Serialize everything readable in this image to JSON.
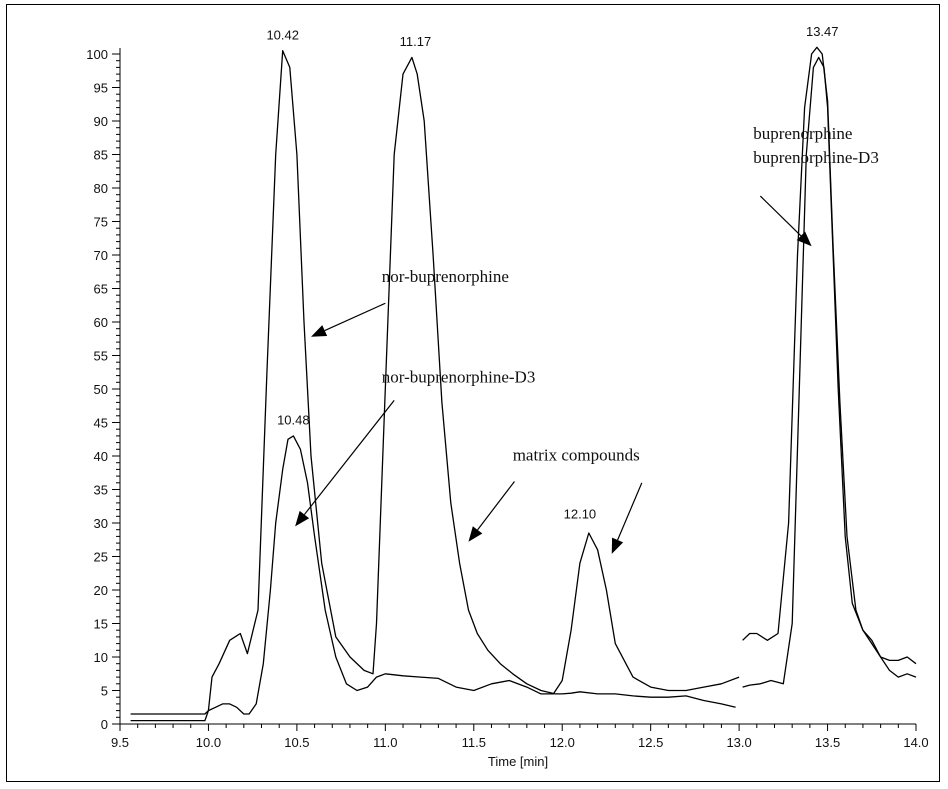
{
  "chart_data": {
    "type": "line",
    "title": "",
    "xlabel": "Time [min]",
    "ylabel": "",
    "xlim": [
      9.5,
      14.0
    ],
    "ylim": [
      0,
      100
    ],
    "x_ticks": [
      "9.5",
      "10.0",
      "10.5",
      "11.0",
      "11.5",
      "12.0",
      "12.5",
      "13.0",
      "13.5",
      "14.0"
    ],
    "y_ticks": [
      "0",
      "5",
      "10",
      "15",
      "20",
      "25",
      "30",
      "35",
      "40",
      "45",
      "50",
      "55",
      "60",
      "65",
      "70",
      "75",
      "80",
      "85",
      "90",
      "95",
      "100"
    ],
    "grid": false,
    "legend": "none",
    "peak_labels": [
      {
        "text": "10.42",
        "x": 10.42,
        "y": 101
      },
      {
        "text": "11.17",
        "x": 11.17,
        "y": 100
      },
      {
        "text": "10.48",
        "x": 10.48,
        "y": 43.5
      },
      {
        "text": "12.10",
        "x": 12.1,
        "y": 29.5
      },
      {
        "text": "13.47",
        "x": 13.47,
        "y": 101.5
      }
    ],
    "annotations": [
      {
        "lines": [
          "nor-buprenorphine"
        ],
        "text_at": [
          10.98,
          66
        ],
        "arrow_from": [
          11.0,
          62.8
        ],
        "arrow_to": [
          10.58,
          57.8
        ]
      },
      {
        "lines": [
          "nor-buprenorphine-D3"
        ],
        "text_at": [
          10.98,
          51
        ],
        "arrow_from": [
          11.05,
          48.3
        ],
        "arrow_to": [
          10.49,
          29.5
        ]
      },
      {
        "lines": [
          "matrix compounds"
        ],
        "text_at": [
          11.72,
          39.3
        ],
        "arrow_from": [
          11.73,
          36.2
        ],
        "arrow_to": [
          11.47,
          27.2
        ]
      },
      {
        "lines": [],
        "text_at": [
          12.45,
          38
        ],
        "arrow_from": [
          12.45,
          36.0
        ],
        "arrow_to": [
          12.28,
          25.4
        ]
      },
      {
        "lines": [
          "buprenorphine",
          "buprenorphine-D3"
        ],
        "text_at": [
          13.08,
          87.3
        ],
        "arrow_from": [
          13.12,
          78.8
        ],
        "arrow_to": [
          13.41,
          71.3
        ]
      }
    ],
    "series": [
      {
        "x": [
          9.56,
          9.98,
          10.0,
          10.02,
          10.06,
          10.12,
          10.18,
          10.22,
          10.28,
          10.33,
          10.38,
          10.42,
          10.46,
          10.5,
          10.54,
          10.58,
          10.64,
          10.72,
          10.8,
          10.88,
          10.93,
          10.95,
          11.0,
          11.05,
          11.1,
          11.15,
          11.18,
          11.22,
          11.27,
          11.32,
          11.37,
          11.42,
          11.47,
          11.52,
          11.58,
          11.65,
          11.72,
          11.8,
          11.88,
          11.96,
          12.0,
          12.05,
          12.1,
          12.2,
          12.3,
          12.4,
          12.5,
          12.6,
          12.7,
          12.8,
          12.9,
          12.98
        ],
        "y": [
          1.5,
          1.5,
          2.0,
          7.0,
          9.0,
          12.5,
          13.5,
          10.5,
          17.0,
          52.0,
          85.0,
          100.5,
          98.0,
          85.0,
          60.0,
          40.0,
          24.0,
          13.0,
          10.0,
          8.0,
          7.5,
          15.0,
          50.0,
          85.0,
          97.0,
          99.5,
          97.0,
          90.0,
          70.0,
          48.0,
          33.0,
          24.0,
          17.0,
          13.5,
          11.0,
          9.0,
          7.5,
          6.0,
          5.0,
          4.5,
          4.5,
          4.6,
          4.8,
          4.5,
          4.5,
          4.2,
          4.0,
          4.0,
          4.2,
          3.5,
          3.0,
          2.5
        ]
      },
      {
        "x": [
          9.56,
          9.98,
          10.0,
          10.04,
          10.08,
          10.12,
          10.16,
          10.2,
          10.23,
          10.27,
          10.31,
          10.35,
          10.38,
          10.42,
          10.45,
          10.48,
          10.52,
          10.56,
          10.6,
          10.66,
          10.72,
          10.78,
          10.84,
          10.9,
          10.95,
          11.0,
          11.1,
          11.2,
          11.3,
          11.4,
          11.5,
          11.6,
          11.7,
          11.8,
          11.88,
          11.95,
          12.0,
          12.05,
          12.1,
          12.15,
          12.2,
          12.25,
          12.3,
          12.4,
          12.5,
          12.6,
          12.7,
          12.8,
          12.9,
          13.0
        ],
        "y": [
          0.5,
          0.5,
          2.0,
          2.5,
          3.0,
          3.0,
          2.5,
          1.5,
          1.5,
          3.0,
          9.0,
          20.0,
          30.0,
          38.0,
          42.5,
          43.0,
          41.0,
          36.0,
          28.0,
          17.0,
          10.0,
          6.0,
          5.0,
          5.5,
          7.0,
          7.5,
          7.2,
          7.0,
          6.8,
          5.5,
          5.0,
          6.0,
          6.5,
          5.5,
          4.5,
          4.5,
          6.5,
          14.0,
          24.0,
          28.5,
          26.0,
          20.0,
          12.0,
          7.0,
          5.5,
          5.0,
          5.0,
          5.5,
          6.0,
          7.0
        ]
      },
      {
        "x": [
          13.02,
          13.06,
          13.1,
          13.16,
          13.22,
          13.28,
          13.33,
          13.37,
          13.41,
          13.44,
          13.47,
          13.5,
          13.53,
          13.57,
          13.61,
          13.66,
          13.7,
          13.75,
          13.8,
          13.85,
          13.9,
          13.95,
          14.0
        ],
        "y": [
          12.5,
          13.5,
          13.5,
          12.5,
          13.5,
          30.0,
          70.0,
          92.0,
          100.0,
          101.0,
          100.0,
          93.0,
          72.0,
          48.0,
          28.0,
          17.0,
          14.0,
          12.5,
          10.0,
          8.0,
          7.0,
          7.5,
          7.0
        ]
      },
      {
        "x": [
          13.02,
          13.06,
          13.12,
          13.18,
          13.25,
          13.3,
          13.34,
          13.38,
          13.42,
          13.45,
          13.48,
          13.5,
          13.52,
          13.56,
          13.6,
          13.64,
          13.7,
          13.75,
          13.8,
          13.85,
          13.9,
          13.95,
          14.0
        ],
        "y": [
          5.5,
          5.8,
          6.0,
          6.5,
          6.0,
          15.0,
          50.0,
          85.0,
          98.0,
          99.5,
          98.0,
          92.0,
          78.0,
          50.0,
          28.0,
          18.0,
          14.0,
          12.0,
          10.0,
          9.5,
          9.5,
          10.0,
          9.0
        ]
      }
    ]
  }
}
